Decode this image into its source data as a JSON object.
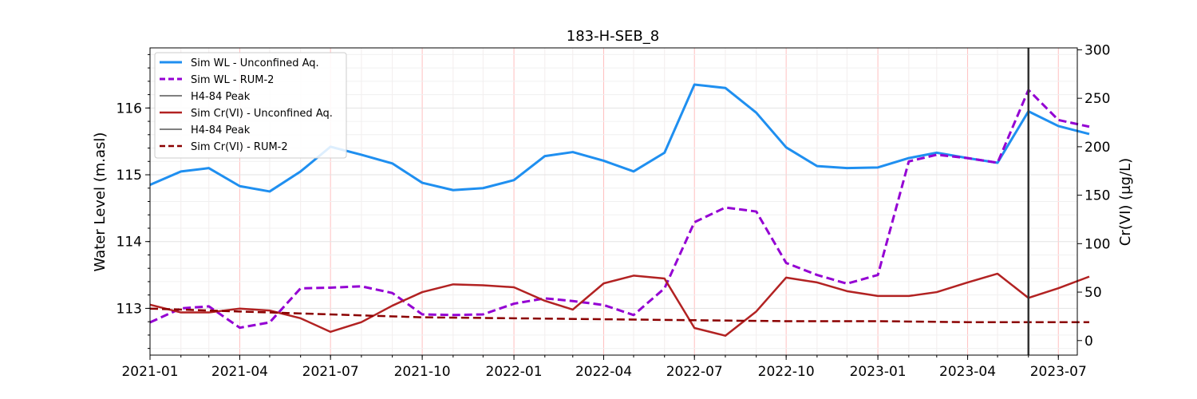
{
  "chart_data": {
    "type": "line",
    "title": "183-H-SEB_8",
    "ylabel_left": "Water Level (m.asl)",
    "ylabel_right": "Cr(VI) (µg/L)",
    "xlim": [
      "2021-01-01",
      "2023-07-20"
    ],
    "ylim_left": [
      112.3,
      116.9
    ],
    "ylim_right": [
      -15,
      302
    ],
    "x_ticks": [
      "2021-01",
      "2021-04",
      "2021-07",
      "2021-10",
      "2022-01",
      "2022-04",
      "2022-07",
      "2022-10",
      "2023-01",
      "2023-04",
      "2023-07"
    ],
    "y_ticks_left": [
      113,
      114,
      115,
      116
    ],
    "y_ticks_right": [
      0,
      50,
      100,
      150,
      200,
      250,
      300
    ],
    "grid": true,
    "legend_position": "top-left",
    "vertical_marker": "2023-06-01",
    "series": [
      {
        "name": "Sim WL - Unconfined Aq.",
        "axis": "left",
        "color": "#1f8ff0",
        "dash": "solid",
        "width": 3,
        "x": [
          "2021-01-01",
          "2021-02-01",
          "2021-03-01",
          "2021-04-01",
          "2021-05-01",
          "2021-06-01",
          "2021-07-01",
          "2021-08-01",
          "2021-09-01",
          "2021-10-01",
          "2021-11-01",
          "2021-12-01",
          "2022-01-01",
          "2022-02-01",
          "2022-03-01",
          "2022-04-01",
          "2022-05-01",
          "2022-06-01",
          "2022-07-01",
          "2022-08-01",
          "2022-09-01",
          "2022-10-01",
          "2022-11-01",
          "2022-12-01",
          "2023-01-01",
          "2023-02-01",
          "2023-03-01",
          "2023-04-01",
          "2023-05-01",
          "2023-06-01",
          "2023-07-01",
          "2023-08-01"
        ],
        "values": [
          114.85,
          115.05,
          115.1,
          114.83,
          114.75,
          115.05,
          115.42,
          115.3,
          115.17,
          114.88,
          114.77,
          114.8,
          114.92,
          115.28,
          115.34,
          115.21,
          115.05,
          115.33,
          116.35,
          116.3,
          115.93,
          115.41,
          115.13,
          115.1,
          115.11,
          115.25,
          115.33,
          115.25,
          115.18,
          115.95,
          115.73,
          115.61
        ]
      },
      {
        "name": "Sim WL - RUM-2",
        "axis": "left",
        "color": "#9400d3",
        "dash": "dashed",
        "width": 3,
        "x": [
          "2021-01-01",
          "2021-02-01",
          "2021-03-01",
          "2021-04-01",
          "2021-05-01",
          "2021-06-01",
          "2021-07-01",
          "2021-08-01",
          "2021-09-01",
          "2021-10-01",
          "2021-11-01",
          "2021-12-01",
          "2022-01-01",
          "2022-02-01",
          "2022-03-01",
          "2022-04-01",
          "2022-05-01",
          "2022-06-01",
          "2022-07-01",
          "2022-08-01",
          "2022-09-01",
          "2022-10-01",
          "2022-11-01",
          "2022-12-01",
          "2023-01-01",
          "2023-02-01",
          "2023-03-01",
          "2023-04-01",
          "2023-05-01",
          "2023-06-01",
          "2023-07-01",
          "2023-08-01"
        ],
        "values": [
          112.79,
          113.0,
          113.03,
          112.71,
          112.79,
          113.3,
          113.31,
          113.33,
          113.23,
          112.91,
          112.9,
          112.91,
          113.07,
          113.15,
          113.11,
          113.05,
          112.9,
          113.3,
          114.29,
          114.51,
          114.45,
          113.68,
          113.5,
          113.37,
          113.5,
          115.2,
          115.3,
          115.25,
          115.18,
          116.27,
          115.82,
          115.72
        ]
      },
      {
        "name": "H4-84 Peak",
        "axis": "right",
        "color": "#808080",
        "dash": "solid",
        "width": 2,
        "x": [],
        "values": []
      },
      {
        "name": "Sim Cr(VI) - Unconfined Aq.",
        "axis": "right",
        "color": "#b22222",
        "dash": "solid",
        "width": 2.5,
        "x": [
          "2021-01-01",
          "2021-02-01",
          "2021-03-01",
          "2021-04-01",
          "2021-05-01",
          "2021-06-01",
          "2021-07-01",
          "2021-08-01",
          "2021-09-01",
          "2021-10-01",
          "2021-11-01",
          "2021-12-01",
          "2022-01-01",
          "2022-02-01",
          "2022-03-01",
          "2022-04-01",
          "2022-05-01",
          "2022-06-01",
          "2022-07-01",
          "2022-08-01",
          "2022-09-01",
          "2022-10-01",
          "2022-11-01",
          "2022-12-01",
          "2023-01-01",
          "2023-02-01",
          "2023-03-01",
          "2023-04-01",
          "2023-05-01",
          "2023-06-01",
          "2023-07-01",
          "2023-08-01"
        ],
        "values": [
          37,
          29,
          29,
          33,
          31,
          23,
          9,
          19,
          36,
          50,
          58,
          57,
          55,
          41,
          32,
          59,
          67,
          64,
          13,
          5,
          30,
          65,
          60,
          51,
          46,
          46,
          50,
          60,
          69,
          44,
          54,
          66
        ]
      },
      {
        "name": "H4-84 Peak",
        "axis": "right",
        "color": "#808080",
        "dash": "solid",
        "width": 2,
        "x": [],
        "values": []
      },
      {
        "name": "Sim Cr(VI) - RUM-2",
        "axis": "right",
        "color": "#8b0000",
        "dash": "dashed",
        "width": 2.5,
        "x": [
          "2021-01-01",
          "2021-04-01",
          "2021-07-01",
          "2021-10-01",
          "2022-01-01",
          "2022-04-01",
          "2022-07-01",
          "2022-10-01",
          "2023-01-01",
          "2023-04-01",
          "2023-07-01",
          "2023-08-01"
        ],
        "values": [
          33,
          30,
          27,
          24,
          23,
          22,
          21,
          20,
          20,
          19,
          19,
          19
        ]
      }
    ]
  }
}
